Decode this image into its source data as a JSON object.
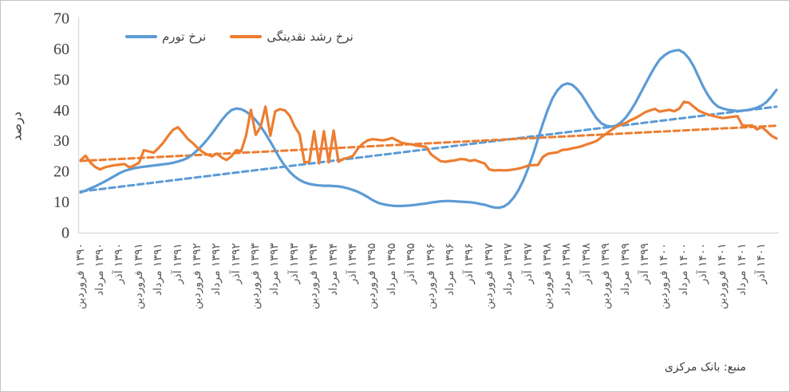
{
  "source_note": "منبع: بانک مرکزی",
  "chart_data": {
    "type": "line",
    "title": "",
    "xlabel": "",
    "ylabel": "درصد",
    "ylim": [
      0,
      70
    ],
    "y_ticks": [
      0,
      10,
      20,
      30,
      40,
      50,
      60,
      70
    ],
    "grid": "off",
    "legend_position": "top",
    "x_unit": "month",
    "x_range_note": "monthly points from Farvardin 1390 to Esfand 1401; tick labels every 4 months",
    "x_ticks": [
      {
        "month": "فروردین",
        "year": "۱۳۹۰"
      },
      {
        "month": "مرداد",
        "year": "۱۳۹۰"
      },
      {
        "month": "آذر",
        "year": "۱۳۹۰"
      },
      {
        "month": "فروردین",
        "year": "۱۳۹۱"
      },
      {
        "month": "مرداد",
        "year": "۱۳۹۱"
      },
      {
        "month": "آذر",
        "year": "۱۳۹۱"
      },
      {
        "month": "فروردین",
        "year": "۱۳۹۲"
      },
      {
        "month": "مرداد",
        "year": "۱۳۹۲"
      },
      {
        "month": "آذر",
        "year": "۱۳۹۲"
      },
      {
        "month": "فروردین",
        "year": "۱۳۹۳"
      },
      {
        "month": "مرداد",
        "year": "۱۳۹۳"
      },
      {
        "month": "آذر",
        "year": "۱۳۹۳"
      },
      {
        "month": "فروردین",
        "year": "۱۳۹۴"
      },
      {
        "month": "مرداد",
        "year": "۱۳۹۴"
      },
      {
        "month": "آذر",
        "year": "۱۳۹۴"
      },
      {
        "month": "فروردین",
        "year": "۱۳۹۵"
      },
      {
        "month": "مرداد",
        "year": "۱۳۹۵"
      },
      {
        "month": "آذر",
        "year": "۱۳۹۵"
      },
      {
        "month": "فروردین",
        "year": "۱۳۹۶"
      },
      {
        "month": "مرداد",
        "year": "۱۳۹۶"
      },
      {
        "month": "آذر",
        "year": "۱۳۹۶"
      },
      {
        "month": "فروردین",
        "year": "۱۳۹۷"
      },
      {
        "month": "مرداد",
        "year": "۱۳۹۷"
      },
      {
        "month": "آذر",
        "year": "۱۳۹۷"
      },
      {
        "month": "فروردین",
        "year": "۱۳۹۸"
      },
      {
        "month": "مرداد",
        "year": "۱۳۹۸"
      },
      {
        "month": "آذر",
        "year": "۱۳۹۸"
      },
      {
        "month": "فروردین",
        "year": "۱۳۹۹"
      },
      {
        "month": "مرداد",
        "year": "۱۳۹۹"
      },
      {
        "month": "آذر",
        "year": "۱۳۹۹"
      },
      {
        "month": "فروردین",
        "year": "۱۴۰۰"
      },
      {
        "month": "مرداد",
        "year": "۱۴۰۰"
      },
      {
        "month": "آذر",
        "year": "۱۴۰۰"
      },
      {
        "month": "فروردین",
        "year": "۱۴۰۱"
      },
      {
        "month": "مرداد",
        "year": "۱۴۰۱"
      },
      {
        "month": "آذر",
        "year": "۱۴۰۱"
      }
    ],
    "series": [
      {
        "id": "inflation-rate",
        "name": "نرخ تورم",
        "color": "#5B9BD5",
        "style": "solid",
        "values": [
          13.0,
          13.6,
          14.3,
          15.0,
          15.8,
          16.6,
          17.5,
          18.4,
          19.3,
          20.0,
          20.5,
          20.9,
          21.2,
          21.4,
          21.6,
          21.8,
          22.0,
          22.2,
          22.4,
          22.7,
          23.1,
          23.6,
          24.3,
          25.4,
          26.8,
          28.4,
          30.2,
          32.2,
          34.4,
          36.6,
          38.5,
          39.9,
          40.4,
          40.2,
          39.4,
          38.2,
          36.6,
          34.6,
          32.2,
          29.6,
          26.8,
          24.0,
          21.6,
          19.7,
          18.2,
          17.1,
          16.3,
          15.8,
          15.5,
          15.3,
          15.2,
          15.2,
          15.1,
          15.0,
          14.7,
          14.3,
          13.8,
          13.2,
          12.4,
          11.5,
          10.5,
          9.7,
          9.2,
          8.9,
          8.7,
          8.6,
          8.6,
          8.7,
          8.8,
          9.0,
          9.2,
          9.4,
          9.7,
          9.9,
          10.1,
          10.2,
          10.2,
          10.1,
          10.0,
          9.9,
          9.8,
          9.6,
          9.3,
          9.0,
          8.5,
          8.1,
          8.0,
          8.4,
          9.5,
          11.3,
          13.8,
          17.0,
          21.0,
          25.5,
          30.5,
          35.5,
          40.0,
          43.8,
          46.4,
          48.0,
          48.6,
          48.2,
          46.8,
          44.8,
          42.3,
          39.7,
          37.3,
          35.6,
          34.8,
          34.5,
          34.8,
          35.8,
          37.4,
          39.6,
          42.2,
          45.2,
          48.2,
          51.2,
          54.0,
          56.4,
          57.8,
          58.8,
          59.3,
          59.5,
          58.6,
          56.8,
          54.2,
          50.8,
          47.4,
          44.6,
          42.4,
          41.0,
          40.4,
          40.0,
          39.8,
          39.6,
          39.7,
          39.9,
          40.2,
          40.7,
          41.4,
          42.6,
          44.4,
          46.5
        ]
      },
      {
        "id": "liquidity-growth-rate",
        "name": "نرخ رشد نقدینگی",
        "color": "#ED7D31",
        "style": "solid",
        "values": [
          23.5,
          25.0,
          22.8,
          21.3,
          20.5,
          21.2,
          21.6,
          21.9,
          22.1,
          22.3,
          21.2,
          21.8,
          22.7,
          26.8,
          26.4,
          26.0,
          27.5,
          29.3,
          31.5,
          33.5,
          34.3,
          32.5,
          30.5,
          29.2,
          27.6,
          26.3,
          25.4,
          24.8,
          25.7,
          24.4,
          23.6,
          24.8,
          26.8,
          26.5,
          31.5,
          40.0,
          31.8,
          34.5,
          41.0,
          31.5,
          39.5,
          40.2,
          39.8,
          38.0,
          34.5,
          32.0,
          22.8,
          23.0,
          33.0,
          22.5,
          33.0,
          22.8,
          33.2,
          23.0,
          24.0,
          24.3,
          25.0,
          27.4,
          29.0,
          30.0,
          30.4,
          30.2,
          30.0,
          30.3,
          30.8,
          30.0,
          29.2,
          28.9,
          28.7,
          28.3,
          28.1,
          27.9,
          25.5,
          24.3,
          23.2,
          23.0,
          23.3,
          23.5,
          23.9,
          23.8,
          23.3,
          23.6,
          23.0,
          22.5,
          20.5,
          20.2,
          20.3,
          20.2,
          20.3,
          20.5,
          20.8,
          21.2,
          21.8,
          21.9,
          22.0,
          24.6,
          25.6,
          25.9,
          26.1,
          26.9,
          27.0,
          27.4,
          27.7,
          28.1,
          28.7,
          29.2,
          29.8,
          31.0,
          32.2,
          33.3,
          34.4,
          35.1,
          35.7,
          36.6,
          37.3,
          38.2,
          39.2,
          39.8,
          40.3,
          39.4,
          39.7,
          40.0,
          39.5,
          40.3,
          42.6,
          42.3,
          41.0,
          39.7,
          39.0,
          38.4,
          38.0,
          37.6,
          37.3,
          37.5,
          37.7,
          37.9,
          34.9,
          34.8,
          34.9,
          33.6,
          34.4,
          33.0,
          31.5,
          30.6
        ]
      }
    ],
    "trendlines": [
      {
        "id": "inflation-trend",
        "for": "نرخ تورم",
        "color": "#5B9BD5",
        "style": "dashed",
        "start": 13.3,
        "end": 41.0
      },
      {
        "id": "liquidity-trend",
        "for": "نرخ رشد نقدینگی",
        "color": "#ED7D31",
        "style": "dashed",
        "start": 23.3,
        "end": 34.8
      }
    ]
  }
}
